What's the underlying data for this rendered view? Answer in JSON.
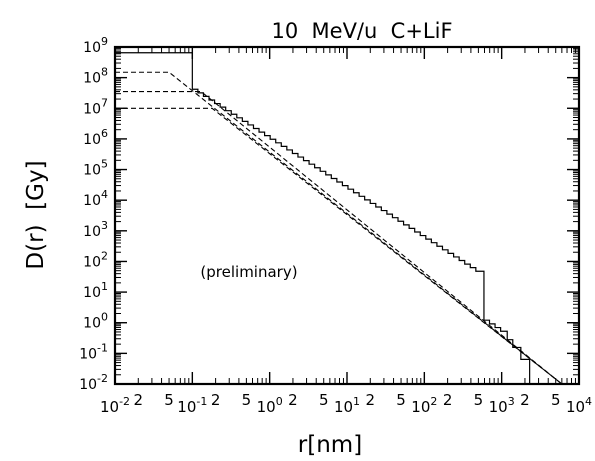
{
  "chart_data": {
    "type": "line",
    "title": "10  MeV/u  C+LiF",
    "xlabel": "r[nm]",
    "ylabel": "D(r)  [Gy]",
    "annotation": "(preliminary)",
    "xscale": "log",
    "yscale": "log",
    "xlim": [
      0.01,
      10000
    ],
    "ylim": [
      0.01,
      1000000000
    ],
    "grid": false,
    "legend": "none",
    "x_major_ticks": [
      {
        "value": 0.01,
        "mantissa": "10",
        "exponent": "-2"
      },
      {
        "value": 0.1,
        "mantissa": "10",
        "exponent": "-1"
      },
      {
        "value": 1,
        "mantissa": "10",
        "exponent": "0"
      },
      {
        "value": 10,
        "mantissa": "10",
        "exponent": "1"
      },
      {
        "value": 100,
        "mantissa": "10",
        "exponent": "2"
      },
      {
        "value": 1000,
        "mantissa": "10",
        "exponent": "3"
      },
      {
        "value": 10000,
        "mantissa": "10",
        "exponent": "4"
      }
    ],
    "x_minor_labels": [
      {
        "value": 0.02,
        "label": "2"
      },
      {
        "value": 0.05,
        "label": "5"
      },
      {
        "value": 0.2,
        "label": "2"
      },
      {
        "value": 0.5,
        "label": "5"
      },
      {
        "value": 2,
        "label": "2"
      },
      {
        "value": 5,
        "label": "5"
      },
      {
        "value": 20,
        "label": "2"
      },
      {
        "value": 50,
        "label": "5"
      },
      {
        "value": 200,
        "label": "2"
      },
      {
        "value": 500,
        "label": "5"
      },
      {
        "value": 2000,
        "label": "2"
      },
      {
        "value": 5000,
        "label": "5"
      }
    ],
    "y_major_ticks": [
      {
        "value": 0.01,
        "mantissa": "10",
        "exponent": "-2"
      },
      {
        "value": 0.1,
        "mantissa": "10",
        "exponent": "-1"
      },
      {
        "value": 1,
        "mantissa": "10",
        "exponent": "0"
      },
      {
        "value": 10,
        "mantissa": "10",
        "exponent": "1"
      },
      {
        "value": 100,
        "mantissa": "10",
        "exponent": "2"
      },
      {
        "value": 1000,
        "mantissa": "10",
        "exponent": "3"
      },
      {
        "value": 10000,
        "mantissa": "10",
        "exponent": "4"
      },
      {
        "value": 100000,
        "mantissa": "10",
        "exponent": "5"
      },
      {
        "value": 1000000,
        "mantissa": "10",
        "exponent": "6"
      },
      {
        "value": 10000000,
        "mantissa": "10",
        "exponent": "7"
      },
      {
        "value": 100000000,
        "mantissa": "10",
        "exponent": "8"
      },
      {
        "value": 1000000000,
        "mantissa": "10",
        "exponent": "9"
      }
    ],
    "series": [
      {
        "style": "solid-step",
        "color": "#000000",
        "plateau": {
          "r_max": 0.1,
          "D": 650000000
        },
        "power_law": {
          "D_at_1nm": 1000000,
          "slope": -1.62
        },
        "step_ratio": 1.18,
        "r_end": 2500,
        "tail": [
          {
            "r": 500,
            "D": 1.6
          },
          {
            "r": 1000,
            "D": 0.5
          },
          {
            "r": 1500,
            "D": 0.12
          },
          {
            "r": 2000,
            "D": 0.04
          },
          {
            "r": 2300,
            "D": 0.012
          }
        ]
      },
      {
        "style": "dashed",
        "color": "#000000",
        "points": [
          {
            "r": 0.01,
            "D": 150000000
          },
          {
            "r": 0.05,
            "D": 150000000
          },
          {
            "r": 6000,
            "D": 0.01
          }
        ]
      },
      {
        "style": "dashed",
        "color": "#000000",
        "points": [
          {
            "r": 0.01,
            "D": 35000000
          },
          {
            "r": 0.13,
            "D": 35000000
          },
          {
            "r": 6000,
            "D": 0.01
          }
        ]
      },
      {
        "style": "dashed",
        "color": "#000000",
        "points": [
          {
            "r": 0.01,
            "D": 10000000
          },
          {
            "r": 0.18,
            "D": 10000000
          },
          {
            "r": 6000,
            "D": 0.01
          }
        ]
      }
    ]
  }
}
